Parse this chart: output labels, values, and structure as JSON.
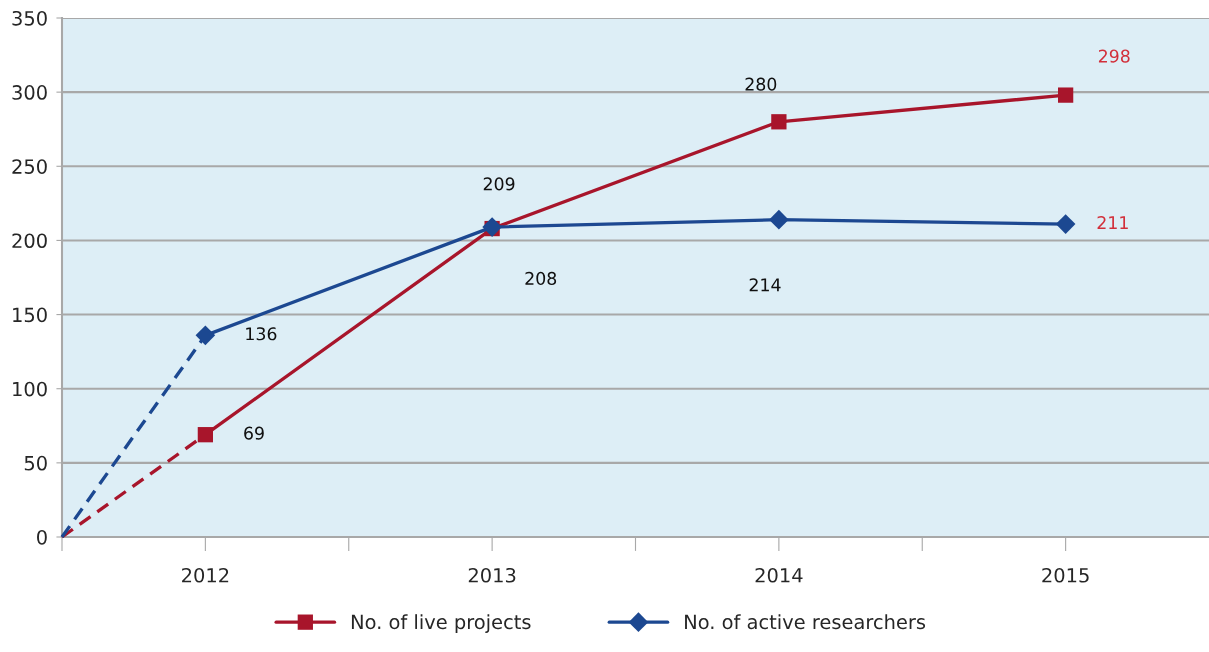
{
  "chart_data": {
    "type": "line",
    "x": [
      2011.5,
      2012,
      2013,
      2014,
      2015
    ],
    "xlim": [
      2011.5,
      2015.5
    ],
    "xticks": [
      {
        "value": 2011.5,
        "label": null
      },
      {
        "value": 2012,
        "label": "2012"
      },
      {
        "value": 2012.5,
        "label": null
      },
      {
        "value": 2013,
        "label": "2013"
      },
      {
        "value": 2013.5,
        "label": null
      },
      {
        "value": 2014,
        "label": "2014"
      },
      {
        "value": 2014.5,
        "label": null
      },
      {
        "value": 2015,
        "label": "2015"
      }
    ],
    "ylim": [
      0,
      350
    ],
    "yticks": [
      0,
      50,
      100,
      150,
      200,
      250,
      300,
      350
    ],
    "grid": "y",
    "legend": "bottom",
    "series": [
      {
        "name": "No. of live projects",
        "color": "#a8152b",
        "marker": "square",
        "values": [
          null,
          69,
          208,
          280,
          298
        ],
        "value_labels": [
          null,
          "69",
          "208",
          "280",
          "298"
        ]
      },
      {
        "name": "No. of active researchers",
        "color": "#1c4891",
        "marker": "diamond",
        "values": [
          null,
          136,
          209,
          214,
          211
        ],
        "value_labels": [
          null,
          "136",
          "209",
          "214",
          "211"
        ]
      },
      {
        "color": "#a8152b",
        "values": [
          0,
          69,
          null,
          null,
          null
        ],
        "line_style": "dashed",
        "marker": "none"
      },
      {
        "color": "#1c4891",
        "values": [
          0,
          136,
          null,
          null,
          null
        ],
        "line_style": "dashed",
        "marker": "none"
      }
    ]
  }
}
